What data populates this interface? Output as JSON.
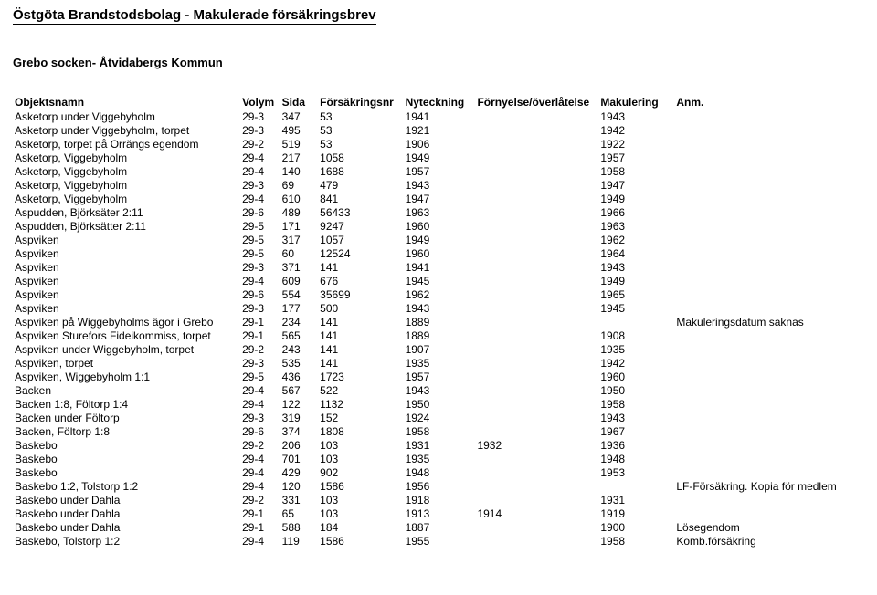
{
  "title": "Östgöta Brandstodsbolag - Makulerade försäkringsbrev",
  "subtitle": "Grebo socken- Åtvidabergs Kommun",
  "headers": {
    "name": "Objektsnamn",
    "volym": "Volym",
    "sida": "Sida",
    "forsnr": "Försäkringsnr",
    "nyteckning": "Nyteckning",
    "fornyelse": "Förnyelse/överlåtelse",
    "makulering": "Makulering",
    "anm": "Anm."
  },
  "rows": [
    {
      "name": "Asketorp under Viggebyholm",
      "vol": "29-3",
      "sida": "347",
      "fnr": "53",
      "nyt": "1941",
      "forn": "",
      "mak": "1943",
      "anm": ""
    },
    {
      "name": "Asketorp under Viggebyholm, torpet",
      "vol": "29-3",
      "sida": "495",
      "fnr": "53",
      "nyt": "1921",
      "forn": "",
      "mak": "1942",
      "anm": ""
    },
    {
      "name": "Asketorp, torpet på Orrängs egendom",
      "vol": "29-2",
      "sida": "519",
      "fnr": "53",
      "nyt": "1906",
      "forn": "",
      "mak": "1922",
      "anm": ""
    },
    {
      "name": "Asketorp, Viggebyholm",
      "vol": "29-4",
      "sida": "217",
      "fnr": "1058",
      "nyt": "1949",
      "forn": "",
      "mak": "1957",
      "anm": ""
    },
    {
      "name": "Asketorp, Viggebyholm",
      "vol": "29-4",
      "sida": "140",
      "fnr": "1688",
      "nyt": "1957",
      "forn": "",
      "mak": "1958",
      "anm": ""
    },
    {
      "name": "Asketorp, Viggebyholm",
      "vol": "29-3",
      "sida": "69",
      "fnr": "479",
      "nyt": "1943",
      "forn": "",
      "mak": "1947",
      "anm": ""
    },
    {
      "name": "Asketorp, Viggebyholm",
      "vol": "29-4",
      "sida": "610",
      "fnr": "841",
      "nyt": "1947",
      "forn": "",
      "mak": "1949",
      "anm": ""
    },
    {
      "name": "Aspudden, Björksäter 2:11",
      "vol": "29-6",
      "sida": "489",
      "fnr": "56433",
      "nyt": "1963",
      "forn": "",
      "mak": "1966",
      "anm": ""
    },
    {
      "name": "Aspudden, Björksätter 2:11",
      "vol": "29-5",
      "sida": "171",
      "fnr": "9247",
      "nyt": "1960",
      "forn": "",
      "mak": "1963",
      "anm": ""
    },
    {
      "name": "Aspviken",
      "vol": "29-5",
      "sida": "317",
      "fnr": "1057",
      "nyt": "1949",
      "forn": "",
      "mak": "1962",
      "anm": ""
    },
    {
      "name": "Aspviken",
      "vol": "29-5",
      "sida": "60",
      "fnr": "12524",
      "nyt": "1960",
      "forn": "",
      "mak": "1964",
      "anm": ""
    },
    {
      "name": "Aspviken",
      "vol": "29-3",
      "sida": "371",
      "fnr": "141",
      "nyt": "1941",
      "forn": "",
      "mak": "1943",
      "anm": ""
    },
    {
      "name": "Aspviken",
      "vol": "29-4",
      "sida": "609",
      "fnr": "676",
      "nyt": "1945",
      "forn": "",
      "mak": "1949",
      "anm": ""
    },
    {
      "name": "Aspviken",
      "vol": "29-6",
      "sida": "554",
      "fnr": "35699",
      "nyt": "1962",
      "forn": "",
      "mak": "1965",
      "anm": ""
    },
    {
      "name": "Aspviken",
      "vol": "29-3",
      "sida": "177",
      "fnr": "500",
      "nyt": "1943",
      "forn": "",
      "mak": "1945",
      "anm": ""
    },
    {
      "name": "Aspviken på Wiggebyholms ägor i Grebo",
      "vol": "29-1",
      "sida": "234",
      "fnr": "141",
      "nyt": "1889",
      "forn": "",
      "mak": "",
      "anm": "Makuleringsdatum saknas"
    },
    {
      "name": "Aspviken Sturefors Fideikommiss, torpet",
      "vol": "29-1",
      "sida": "565",
      "fnr": "141",
      "nyt": "1889",
      "forn": "",
      "mak": "1908",
      "anm": ""
    },
    {
      "name": "Aspviken under Wiggebyholm, torpet",
      "vol": "29-2",
      "sida": "243",
      "fnr": "141",
      "nyt": "1907",
      "forn": "",
      "mak": "1935",
      "anm": ""
    },
    {
      "name": "Aspviken, torpet",
      "vol": "29-3",
      "sida": "535",
      "fnr": "141",
      "nyt": "1935",
      "forn": "",
      "mak": "1942",
      "anm": ""
    },
    {
      "name": "Aspviken, Wiggebyholm 1:1",
      "vol": "29-5",
      "sida": "436",
      "fnr": "1723",
      "nyt": "1957",
      "forn": "",
      "mak": "1960",
      "anm": ""
    },
    {
      "name": "Backen",
      "vol": "29-4",
      "sida": "567",
      "fnr": "522",
      "nyt": "1943",
      "forn": "",
      "mak": "1950",
      "anm": ""
    },
    {
      "name": "Backen 1:8, Föltorp 1:4",
      "vol": "29-4",
      "sida": "122",
      "fnr": "1132",
      "nyt": "1950",
      "forn": "",
      "mak": "1958",
      "anm": ""
    },
    {
      "name": "Backen under Föltorp",
      "vol": "29-3",
      "sida": "319",
      "fnr": "152",
      "nyt": "1924",
      "forn": "",
      "mak": "1943",
      "anm": ""
    },
    {
      "name": "Backen, Föltorp 1:8",
      "vol": "29-6",
      "sida": "374",
      "fnr": "1808",
      "nyt": "1958",
      "forn": "",
      "mak": "1967",
      "anm": ""
    },
    {
      "name": "Baskebo",
      "vol": "29-2",
      "sida": "206",
      "fnr": "103",
      "nyt": "1931",
      "forn": "1932",
      "mak": "1936",
      "anm": ""
    },
    {
      "name": "Baskebo",
      "vol": "29-4",
      "sida": "701",
      "fnr": "103",
      "nyt": "1935",
      "forn": "",
      "mak": "1948",
      "anm": ""
    },
    {
      "name": "Baskebo",
      "vol": "29-4",
      "sida": "429",
      "fnr": "902",
      "nyt": "1948",
      "forn": "",
      "mak": "1953",
      "anm": ""
    },
    {
      "name": "Baskebo 1:2, Tolstorp 1:2",
      "vol": "29-4",
      "sida": "120",
      "fnr": "1586",
      "nyt": "1956",
      "forn": "",
      "mak": "",
      "anm": "LF-Försäkring. Kopia för medlem"
    },
    {
      "name": "Baskebo under Dahla",
      "vol": "29-2",
      "sida": "331",
      "fnr": "103",
      "nyt": "1918",
      "forn": "",
      "mak": "1931",
      "anm": ""
    },
    {
      "name": "Baskebo under Dahla",
      "vol": "29-1",
      "sida": "65",
      "fnr": "103",
      "nyt": "1913",
      "forn": "1914",
      "mak": "1919",
      "anm": ""
    },
    {
      "name": "Baskebo under Dahla",
      "vol": "29-1",
      "sida": "588",
      "fnr": "184",
      "nyt": "1887",
      "forn": "",
      "mak": "1900",
      "anm": "Lösegendom"
    },
    {
      "name": "Baskebo, Tolstorp 1:2",
      "vol": "29-4",
      "sida": "119",
      "fnr": "1586",
      "nyt": "1955",
      "forn": "",
      "mak": "1958",
      "anm": "Komb.försäkring"
    }
  ]
}
